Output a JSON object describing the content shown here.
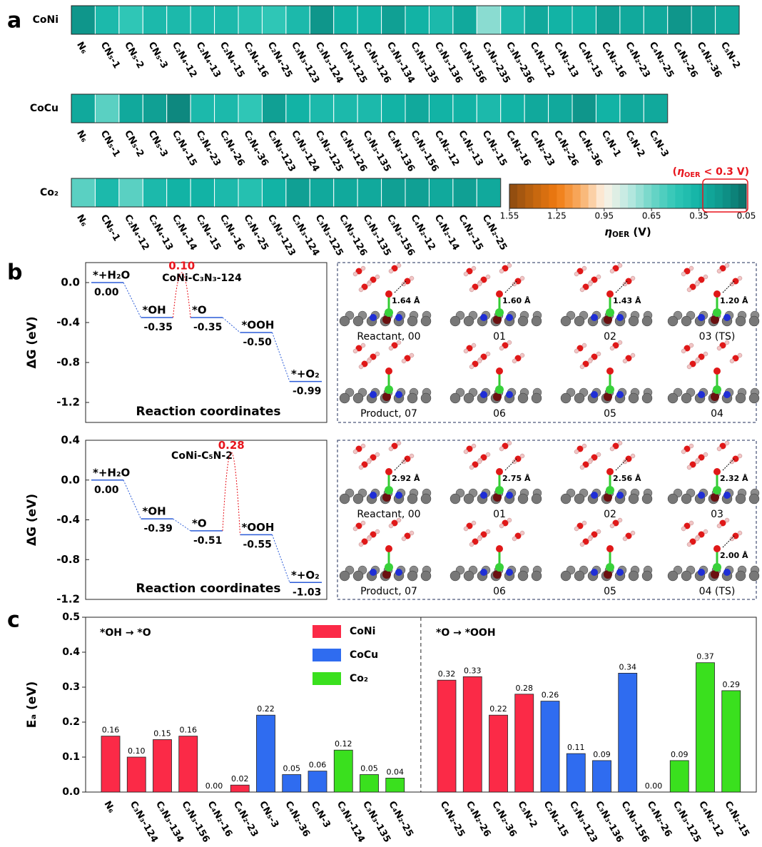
{
  "panel_labels": [
    "a",
    "b",
    "c"
  ],
  "chart_data": [
    {
      "type": "heatmap",
      "rows": [
        {
          "name": "CoNi",
          "categories": [
            "N₆",
            "CN₅-1",
            "CN₅-2",
            "CN₅-3",
            "C₂N₄-12",
            "C₂N₄-13",
            "C₂N₄-15",
            "C₂N₄-16",
            "C₂N₄-25",
            "C₃N₃-123",
            "C₃N₃-124",
            "C₃N₃-125",
            "C₃N₃-126",
            "C₃N₃-134",
            "C₃N₃-135",
            "C₃N₃-136",
            "C₃N₃-156",
            "C₃N₃-235",
            "C₃N₃-236",
            "C₄N₂-12",
            "C₄N₂-13",
            "C₄N₂-15",
            "C₄N₂-16",
            "C₄N₂-23",
            "C₄N₂-25",
            "C₄N₂-26",
            "C₄N₂-36",
            "C₅N-2"
          ],
          "values": [
            0.2,
            0.4,
            0.5,
            0.4,
            0.4,
            0.4,
            0.4,
            0.45,
            0.5,
            0.4,
            0.2,
            0.35,
            0.35,
            0.25,
            0.35,
            0.4,
            0.3,
            0.7,
            0.4,
            0.3,
            0.35,
            0.35,
            0.25,
            0.3,
            0.3,
            0.2,
            0.25,
            0.3
          ]
        },
        {
          "name": "CoCu",
          "categories": [
            "N₆",
            "CN₅-1",
            "CN₅-2",
            "CN₅-3",
            "C₂N₄-15",
            "C₂N₄-23",
            "C₂N₄-26",
            "C₂N₄-36",
            "C₃N₃-123",
            "C₃N₃-124",
            "C₃N₃-125",
            "C₃N₃-126",
            "C₃N₃-135",
            "C₃N₃-136",
            "C₃N₃-156",
            "C₄N₂-12",
            "C₄N₂-13",
            "C₄N₂-15",
            "C₄N₂-16",
            "C₄N₂-23",
            "C₄N₂-26",
            "C₄N₂-36",
            "C₅N-1",
            "C₅N-2",
            "C₅N-3"
          ],
          "values": [
            0.3,
            0.6,
            0.3,
            0.25,
            0.15,
            0.4,
            0.4,
            0.5,
            0.25,
            0.35,
            0.4,
            0.4,
            0.4,
            0.35,
            0.3,
            0.35,
            0.35,
            0.4,
            0.35,
            0.3,
            0.3,
            0.2,
            0.35,
            0.3,
            0.3
          ]
        },
        {
          "name": "Co₂",
          "categories": [
            "N₆",
            "CN₅-1",
            "C₂N₄-12",
            "C₂N₄-13",
            "C₂N₄-14",
            "C₂N₄-15",
            "C₂N₄-16",
            "C₂N₄-25",
            "C₃N₃-123",
            "C₃N₃-124",
            "C₃N₃-125",
            "C₃N₃-126",
            "C₃N₃-135",
            "C₃N₃-156",
            "C₄N₂-12",
            "C₄N₂-14",
            "C₄N₂-15",
            "C₄N₂-25"
          ],
          "values": [
            0.6,
            0.4,
            0.6,
            0.4,
            0.35,
            0.35,
            0.4,
            0.45,
            0.35,
            0.25,
            0.3,
            0.3,
            0.3,
            0.25,
            0.25,
            0.3,
            0.25,
            0.3
          ]
        }
      ],
      "colorbar": {
        "xlim": [
          1.55,
          0.05
        ],
        "xticks": [
          1.55,
          1.25,
          0.95,
          0.65,
          0.35,
          0.05
        ],
        "label_parts": [
          "η",
          "OER",
          " (V)"
        ],
        "colormap": [
          "#8a4a10",
          "#c0640f",
          "#f07a10",
          "#f8ad66",
          "#fdf2e6",
          "#bfeae2",
          "#6fd5c8",
          "#2fc6b6",
          "#12b3a5",
          "#0f968b",
          "#0b6d66"
        ]
      },
      "annotation_parts": [
        "(",
        "η",
        "OER",
        " < 0.3 V)"
      ],
      "annotation_color": "#e8141c"
    },
    {
      "type": "energy",
      "title": "CoNi-C₃N₃-124",
      "steps": [
        "*+H₂O",
        "*OH",
        "*O",
        "*OOH",
        "*+O₂"
      ],
      "values": [
        0,
        -0.35,
        -0.35,
        -0.5,
        -0.99
      ],
      "value_labels": [
        "0.00",
        "-0.35",
        "-0.35",
        "-0.50",
        "-0.99"
      ],
      "barriers": [
        null,
        0.1,
        null,
        null
      ],
      "barrier_labels": [
        null,
        "0.10",
        null,
        null
      ],
      "ylim": [
        -1.4,
        0.2
      ],
      "yticks": [
        {
          "value": 0,
          "label": "0.0"
        },
        -0.4,
        -0.8,
        -1.2
      ],
      "ylabel": "ΔG (eV)",
      "xlabel": "Reaction coordinates",
      "color": "#2a5bd7",
      "barrier_color": "#e8141c",
      "snapshots": [
        {
          "caption": "Reactant, 00",
          "distance": "1.64 Å"
        },
        {
          "caption": "01",
          "distance": "1.60 Å"
        },
        {
          "caption": "02",
          "distance": "1.43 Å"
        },
        {
          "caption": "03 (TS)",
          "distance": "1.20 Å"
        },
        {
          "caption": "Product, 07"
        },
        {
          "caption": "06"
        },
        {
          "caption": "05"
        },
        {
          "caption": "04"
        }
      ]
    },
    {
      "type": "energy",
      "title": "CoNi-C₅N-2",
      "steps": [
        "*+H₂O",
        "*OH",
        "*O",
        "*OOH",
        "*+O₂"
      ],
      "values": [
        0,
        -0.39,
        -0.51,
        -0.55,
        -1.03
      ],
      "value_labels": [
        "0.00",
        "-0.39",
        "-0.51",
        "-0.55",
        "-1.03"
      ],
      "barriers": [
        null,
        null,
        0.28,
        null
      ],
      "barrier_labels": [
        null,
        null,
        "0.28",
        null
      ],
      "ylim": [
        -1.2,
        0.4
      ],
      "yticks": [
        0.4,
        {
          "value": 0,
          "label": "0.0"
        },
        -0.4,
        -0.8,
        -1.2
      ],
      "ylabel": "ΔG (eV)",
      "xlabel": "Reaction coordinates",
      "color": "#2a5bd7",
      "barrier_color": "#e8141c",
      "snapshots": [
        {
          "caption": "Reactant, 00",
          "distance": "2.92 Å"
        },
        {
          "caption": "01",
          "distance": "2.75 Å"
        },
        {
          "caption": "02",
          "distance": "2.56 Å"
        },
        {
          "caption": "03",
          "distance": "2.32 Å"
        },
        {
          "caption": "Product, 07"
        },
        {
          "caption": "06"
        },
        {
          "caption": "05"
        },
        {
          "caption": "04 (TS)",
          "distance": "2.00 Å"
        }
      ]
    },
    {
      "type": "bar",
      "ylabel": "Eₐ (eV)",
      "ylim": [
        0,
        0.5
      ],
      "yticks": [
        {
          "value": 0,
          "label": "0.0"
        },
        0.1,
        0.2,
        0.3,
        0.4,
        0.5
      ],
      "legend": [
        {
          "name": "CoNi",
          "color": "#fb2a47"
        },
        {
          "name": "CoCu",
          "color": "#2f6cf0"
        },
        {
          "name": "Co₂",
          "color": "#3ae01e"
        }
      ],
      "groups": [
        {
          "annotation": "*OH → *O",
          "categories": [
            "N₆",
            "C₃N₃-124",
            "C₃N₃-134",
            "C₃N₃-156",
            "C₄N₂-16",
            "C₄N₂-23",
            "CN₅-3",
            "C₄N₂-36",
            "C₅N-3",
            "C₃N₃-124",
            "C₃N₃-135",
            "C₄N₂-25"
          ],
          "values": [
            0.16,
            0.1,
            0.15,
            0.16,
            0,
            0.02,
            0.22,
            0.05,
            0.06,
            0.12,
            0.05,
            0.04
          ],
          "value_labels": [
            "0.16",
            "0.10",
            "0.15",
            "0.16",
            "0.00",
            "0.02",
            "0.22",
            "0.05",
            "0.06",
            "0.12",
            "0.05",
            "0.04"
          ],
          "colors": [
            "#fb2a47",
            "#fb2a47",
            "#fb2a47",
            "#fb2a47",
            "#fb2a47",
            "#fb2a47",
            "#2f6cf0",
            "#2f6cf0",
            "#2f6cf0",
            "#3ae01e",
            "#3ae01e",
            "#3ae01e"
          ]
        },
        {
          "annotation": "*O → *OOH",
          "categories": [
            "C₄N₂-25",
            "C₄N₂-26",
            "C₄N₂-36",
            "C₅N-2",
            "C₂N₄-15",
            "C₃N₃-123",
            "C₃N₃-136",
            "C₃N₃-156",
            "C₄N₂-26",
            "C₃N₃-125",
            "C₄N₂-12",
            "C₄N₂-15"
          ],
          "values": [
            0.32,
            0.33,
            0.22,
            0.28,
            0.26,
            0.11,
            0.09,
            0.34,
            0,
            0.09,
            0.37,
            0.29
          ],
          "value_labels": [
            "0.32",
            "0.33",
            "0.22",
            "0.28",
            "0.26",
            "0.11",
            "0.09",
            "0.34",
            "0.00",
            "0.09",
            "0.37",
            "0.29"
          ],
          "colors": [
            "#fb2a47",
            "#fb2a47",
            "#fb2a47",
            "#fb2a47",
            "#2f6cf0",
            "#2f6cf0",
            "#2f6cf0",
            "#2f6cf0",
            "#3ae01e",
            "#3ae01e",
            "#3ae01e",
            "#3ae01e"
          ]
        }
      ]
    }
  ]
}
